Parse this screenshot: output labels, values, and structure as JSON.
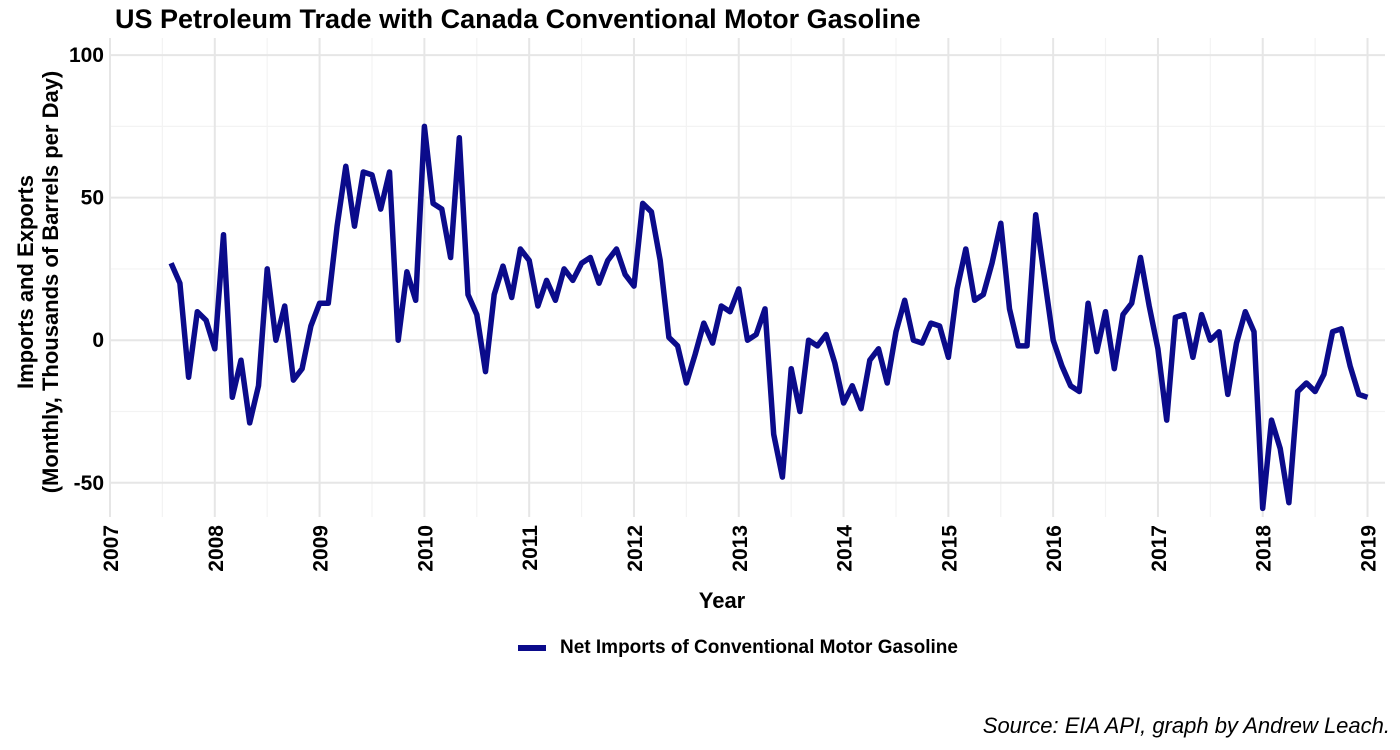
{
  "chart_data": {
    "type": "line",
    "title": "US Petroleum Trade with Canada Conventional Motor Gasoline",
    "xlabel": "Year",
    "ylabel": "Imports and Exports\n(Monthly, Thousands of Barrels per Day)",
    "x_ticks": [
      "2007",
      "2008",
      "2009",
      "2010",
      "2011",
      "2012",
      "2013",
      "2014",
      "2015",
      "2016",
      "2017",
      "2018",
      "2019"
    ],
    "y_ticks": [
      -50,
      0,
      50,
      100
    ],
    "xlim": [
      "2007-01",
      "2019-03"
    ],
    "ylim": [
      -62,
      106
    ],
    "grid": true,
    "legend_position": "bottom",
    "color": "#0b0b8b",
    "x_start": "2007-08",
    "series": [
      {
        "name": "Net Imports of Conventional Motor Gasoline",
        "values": [
          27,
          20,
          -13,
          10,
          7,
          -3,
          37,
          -20,
          -7,
          -29,
          -16,
          25,
          0,
          12,
          -14,
          -10,
          5,
          13,
          13,
          40,
          61,
          40,
          59,
          58,
          46,
          59,
          0,
          24,
          14,
          75,
          48,
          46,
          29,
          71,
          16,
          9,
          -11,
          16,
          26,
          15,
          32,
          28,
          12,
          21,
          14,
          25,
          21,
          27,
          29,
          20,
          28,
          32,
          23,
          19,
          48,
          45,
          28,
          1,
          -2,
          -15,
          -5,
          6,
          -1,
          12,
          10,
          18,
          0,
          2,
          11,
          -33,
          -48,
          -10,
          -25,
          0,
          -2,
          2,
          -8,
          -22,
          -16,
          -24,
          -7,
          -3,
          -15,
          3,
          14,
          0,
          -1,
          6,
          5,
          -6,
          18,
          32,
          14,
          16,
          27,
          41,
          11,
          -2,
          -2,
          44,
          22,
          0,
          -9,
          -16,
          -18,
          13,
          -4,
          10,
          -10,
          9,
          13,
          29,
          12,
          -3,
          -28,
          8,
          9,
          -6,
          9,
          0,
          3,
          -19,
          -1,
          10,
          3,
          -59,
          -28,
          -38,
          -57,
          -18,
          -15,
          -18,
          -12,
          3,
          4,
          -9,
          -19,
          -20
        ]
      }
    ]
  },
  "caption": "Source: EIA API, graph by Andrew Leach."
}
